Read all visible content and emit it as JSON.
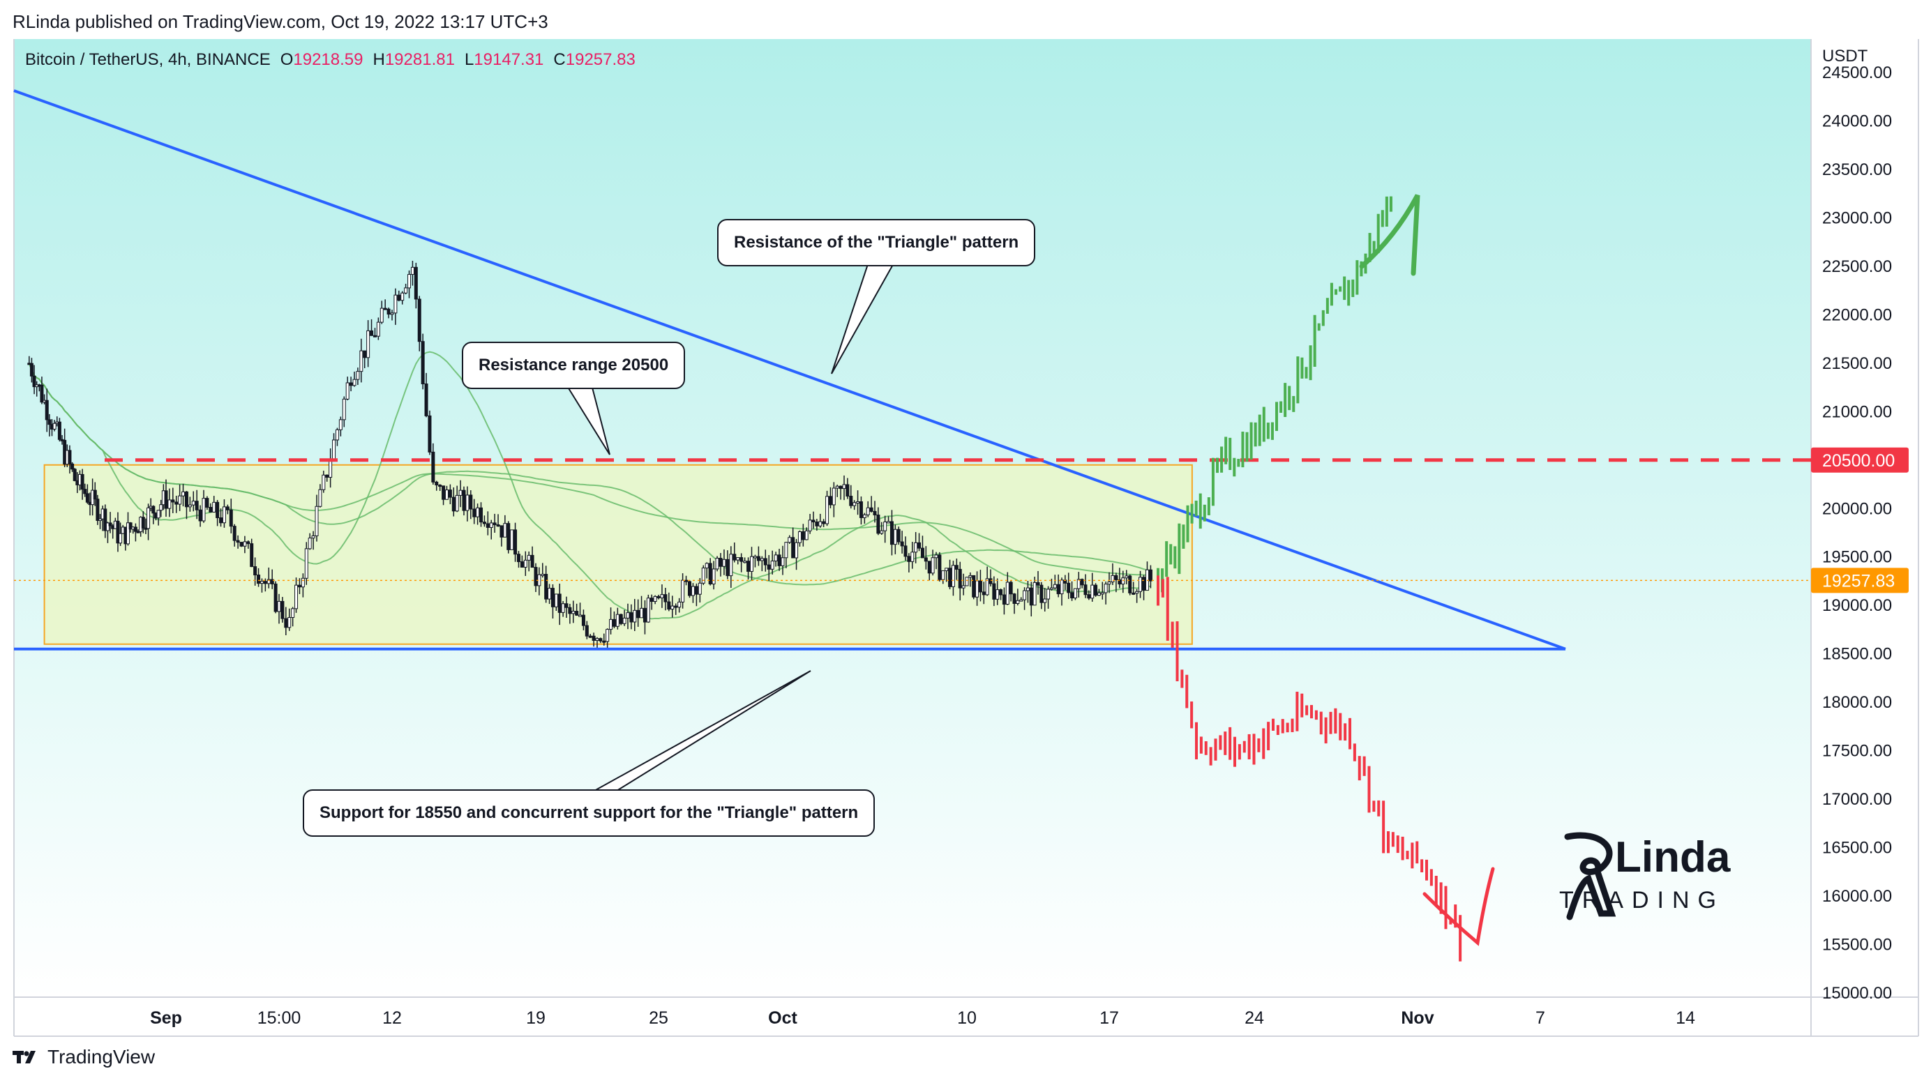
{
  "publisher_line": "RLinda published on TradingView.com, Oct 19, 2022 13:17 UTC+3",
  "symbol": {
    "name": "Bitcoin / TetherUS, 4h, BINANCE",
    "open_label": "O",
    "open": "19218.59",
    "high_label": "H",
    "high": "19281.81",
    "low_label": "L",
    "low": "19147.31",
    "close_label": "C",
    "close": "19257.83"
  },
  "price_axis": {
    "currency": "USDT",
    "ticks": [
      "24500.00",
      "24000.00",
      "23500.00",
      "23000.00",
      "22500.00",
      "22000.00",
      "21500.00",
      "21000.00",
      "20500.00",
      "20000.00",
      "19500.00",
      "19000.00",
      "18500.00",
      "18000.00",
      "17500.00",
      "17000.00",
      "16500.00",
      "16000.00",
      "15500.00",
      "15000.00"
    ]
  },
  "price_badges": {
    "resistance": "20500.00",
    "current": "19257.83"
  },
  "time_axis": [
    "Sep",
    "15:00",
    "12",
    "19",
    "25",
    "Oct",
    "10",
    "17",
    "24",
    "Nov",
    "7",
    "14"
  ],
  "callouts": {
    "triangle_resistance": "Resistance of the \"Triangle\" pattern",
    "resistance_range": "Resistance range 20500",
    "support": "Support for 18550 and concurrent support for the \"Triangle\" pattern"
  },
  "logo": {
    "text_top": "Linda",
    "text_bottom": "TRADING"
  },
  "footer_brand": "TradingView",
  "colors": {
    "background_top": "#b2efea",
    "background_bottom": "#ffffff",
    "trendline": "#2962ff",
    "resistance_dash": "#f23645",
    "range_box_fill": "#eaf7c8",
    "range_box_border": "#f5a623",
    "candles": "#131722",
    "bull_projection": "#4caf50",
    "bear_projection": "#f23645",
    "moving_average": "#66bb6a",
    "current_price_badge": "#ff9800"
  },
  "chart_data": {
    "type": "candlestick",
    "title": "Bitcoin / TetherUS, 4h, BINANCE",
    "y_unit": "USDT",
    "ylim": [
      15000,
      24500
    ],
    "x_labels": [
      "Sep",
      "15:00",
      "12",
      "19",
      "25",
      "Oct",
      "10",
      "17",
      "24",
      "Nov",
      "7",
      "14"
    ],
    "levels": [
      {
        "name": "Resistance range",
        "price": 20500
      },
      {
        "name": "Support",
        "price": 18550
      }
    ],
    "range_box": {
      "low": 18600,
      "high": 20450,
      "from": "Aug 24",
      "to": "Oct 21"
    },
    "triangle_resistance": {
      "from_price": 23300,
      "to_price": 18550
    },
    "price_path": [
      {
        "t": "Aug 23",
        "p": 21500
      },
      {
        "t": "Aug 26",
        "p": 20300
      },
      {
        "t": "Aug 29",
        "p": 19700
      },
      {
        "t": "Sep 1",
        "p": 20100
      },
      {
        "t": "Sep 4",
        "p": 19900
      },
      {
        "t": "Sep 7",
        "p": 18800
      },
      {
        "t": "Sep 10",
        "p": 21400
      },
      {
        "t": "Sep 13",
        "p": 22500
      },
      {
        "t": "Sep 14",
        "p": 20200
      },
      {
        "t": "Sep 17",
        "p": 19900
      },
      {
        "t": "Sep 20",
        "p": 19000
      },
      {
        "t": "Sep 22",
        "p": 18700
      },
      {
        "t": "Sep 25",
        "p": 19000
      },
      {
        "t": "Sep 28",
        "p": 19400
      },
      {
        "t": "Oct 1",
        "p": 19500
      },
      {
        "t": "Oct 4",
        "p": 20200
      },
      {
        "t": "Oct 7",
        "p": 19600
      },
      {
        "t": "Oct 10",
        "p": 19200
      },
      {
        "t": "Oct 13",
        "p": 19100
      },
      {
        "t": "Oct 16",
        "p": 19200
      },
      {
        "t": "Oct 19",
        "p": 19257.83
      }
    ],
    "bull_scenario": [
      19300,
      19900,
      20500,
      20800,
      21300,
      22000,
      22500,
      23300
    ],
    "bear_scenario": [
      19257,
      17600,
      17500,
      17700,
      17900,
      17700,
      16500,
      16300,
      15500
    ]
  }
}
